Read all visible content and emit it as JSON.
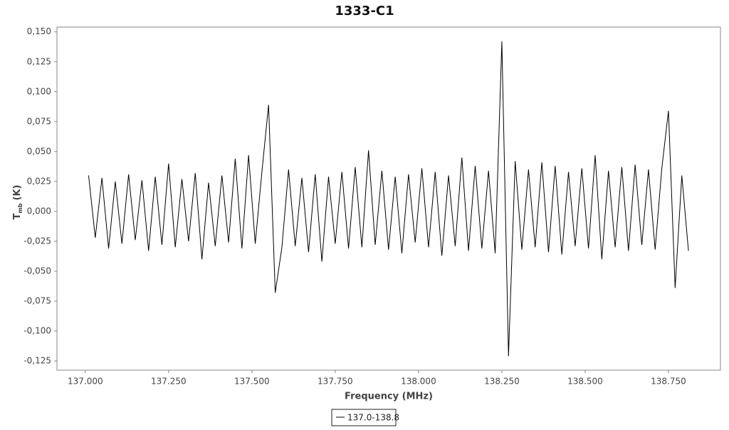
{
  "chart_data": {
    "type": "line",
    "title": "1333-C1",
    "x_label": "Frequency (MHz)",
    "y_label": "T",
    "y_label_sub": "mb",
    "y_label_unit": "(K)",
    "xlim": [
      136.915,
      138.906
    ],
    "ylim": [
      -0.1327,
      0.154
    ],
    "xticks": [
      {
        "value": 137,
        "label": "137.000"
      },
      {
        "value": 137.25,
        "label": "137.250"
      },
      {
        "value": 137.5,
        "label": "137.500"
      },
      {
        "value": 137.75,
        "label": "137.750"
      },
      {
        "value": 138,
        "label": "138.000"
      },
      {
        "value": 138.25,
        "label": "138.250"
      },
      {
        "value": 138.5,
        "label": "138.500"
      },
      {
        "value": 138.75,
        "label": "138.750"
      }
    ],
    "yticks": [
      {
        "value": -0.125,
        "label": "-0,125"
      },
      {
        "value": -0.1,
        "label": "-0,100"
      },
      {
        "value": -0.075,
        "label": "-0,075"
      },
      {
        "value": -0.05,
        "label": "-0,050"
      },
      {
        "value": -0.025,
        "label": "-0,025"
      },
      {
        "value": 0,
        "label": "0,000"
      },
      {
        "value": 0.025,
        "label": "0,025"
      },
      {
        "value": 0.05,
        "label": "0,050"
      },
      {
        "value": 0.075,
        "label": "0,075"
      },
      {
        "value": 0.1,
        "label": "0,100"
      },
      {
        "value": 0.125,
        "label": "0,125"
      },
      {
        "value": 0.15,
        "label": "0,150"
      }
    ],
    "x": [
      137.01,
      137.03,
      137.05,
      137.07,
      137.09,
      137.11,
      137.13,
      137.15,
      137.17,
      137.19,
      137.21,
      137.23,
      137.25,
      137.27,
      137.29,
      137.31,
      137.33,
      137.35,
      137.37,
      137.39,
      137.41,
      137.43,
      137.45,
      137.47,
      137.49,
      137.51,
      137.53,
      137.55,
      137.57,
      137.59,
      137.61,
      137.63,
      137.65,
      137.67,
      137.69,
      137.71,
      137.73,
      137.75,
      137.77,
      137.79,
      137.81,
      137.83,
      137.85,
      137.87,
      137.89,
      137.91,
      137.93,
      137.95,
      137.97,
      137.99,
      138.01,
      138.03,
      138.05,
      138.07,
      138.09,
      138.11,
      138.13,
      138.15,
      138.17,
      138.19,
      138.21,
      138.23,
      138.25,
      138.27,
      138.29,
      138.31,
      138.33,
      138.35,
      138.37,
      138.39,
      138.41,
      138.43,
      138.45,
      138.47,
      138.49,
      138.51,
      138.53,
      138.55,
      138.57,
      138.59,
      138.61,
      138.63,
      138.65,
      138.67,
      138.69,
      138.71,
      138.73,
      138.75,
      138.77,
      138.79,
      138.81
    ],
    "series": [
      {
        "name": "137.0-138.8",
        "color": "#000000",
        "values": [
          0.03,
          -0.022,
          0.028,
          -0.031,
          0.025,
          -0.027,
          0.031,
          -0.024,
          0.026,
          -0.033,
          0.029,
          -0.028,
          0.04,
          -0.03,
          0.027,
          -0.025,
          0.032,
          -0.04,
          0.024,
          -0.029,
          0.03,
          -0.026,
          0.044,
          -0.031,
          0.047,
          -0.027,
          0.033,
          0.089,
          -0.068,
          -0.03,
          0.035,
          -0.029,
          0.028,
          -0.034,
          0.031,
          -0.042,
          0.029,
          -0.027,
          0.033,
          -0.031,
          0.037,
          -0.03,
          0.051,
          -0.028,
          0.034,
          -0.032,
          0.029,
          -0.035,
          0.031,
          -0.026,
          0.036,
          -0.03,
          0.033,
          -0.037,
          0.03,
          -0.029,
          0.045,
          -0.033,
          0.038,
          -0.031,
          0.034,
          -0.035,
          0.142,
          -0.121,
          0.042,
          -0.032,
          0.035,
          -0.03,
          0.041,
          -0.034,
          0.038,
          -0.036,
          0.033,
          -0.029,
          0.036,
          -0.031,
          0.047,
          -0.04,
          0.034,
          -0.03,
          0.037,
          -0.033,
          0.039,
          -0.028,
          0.035,
          -0.032,
          0.036,
          0.084,
          -0.064,
          0.03,
          -0.033
        ]
      }
    ]
  }
}
